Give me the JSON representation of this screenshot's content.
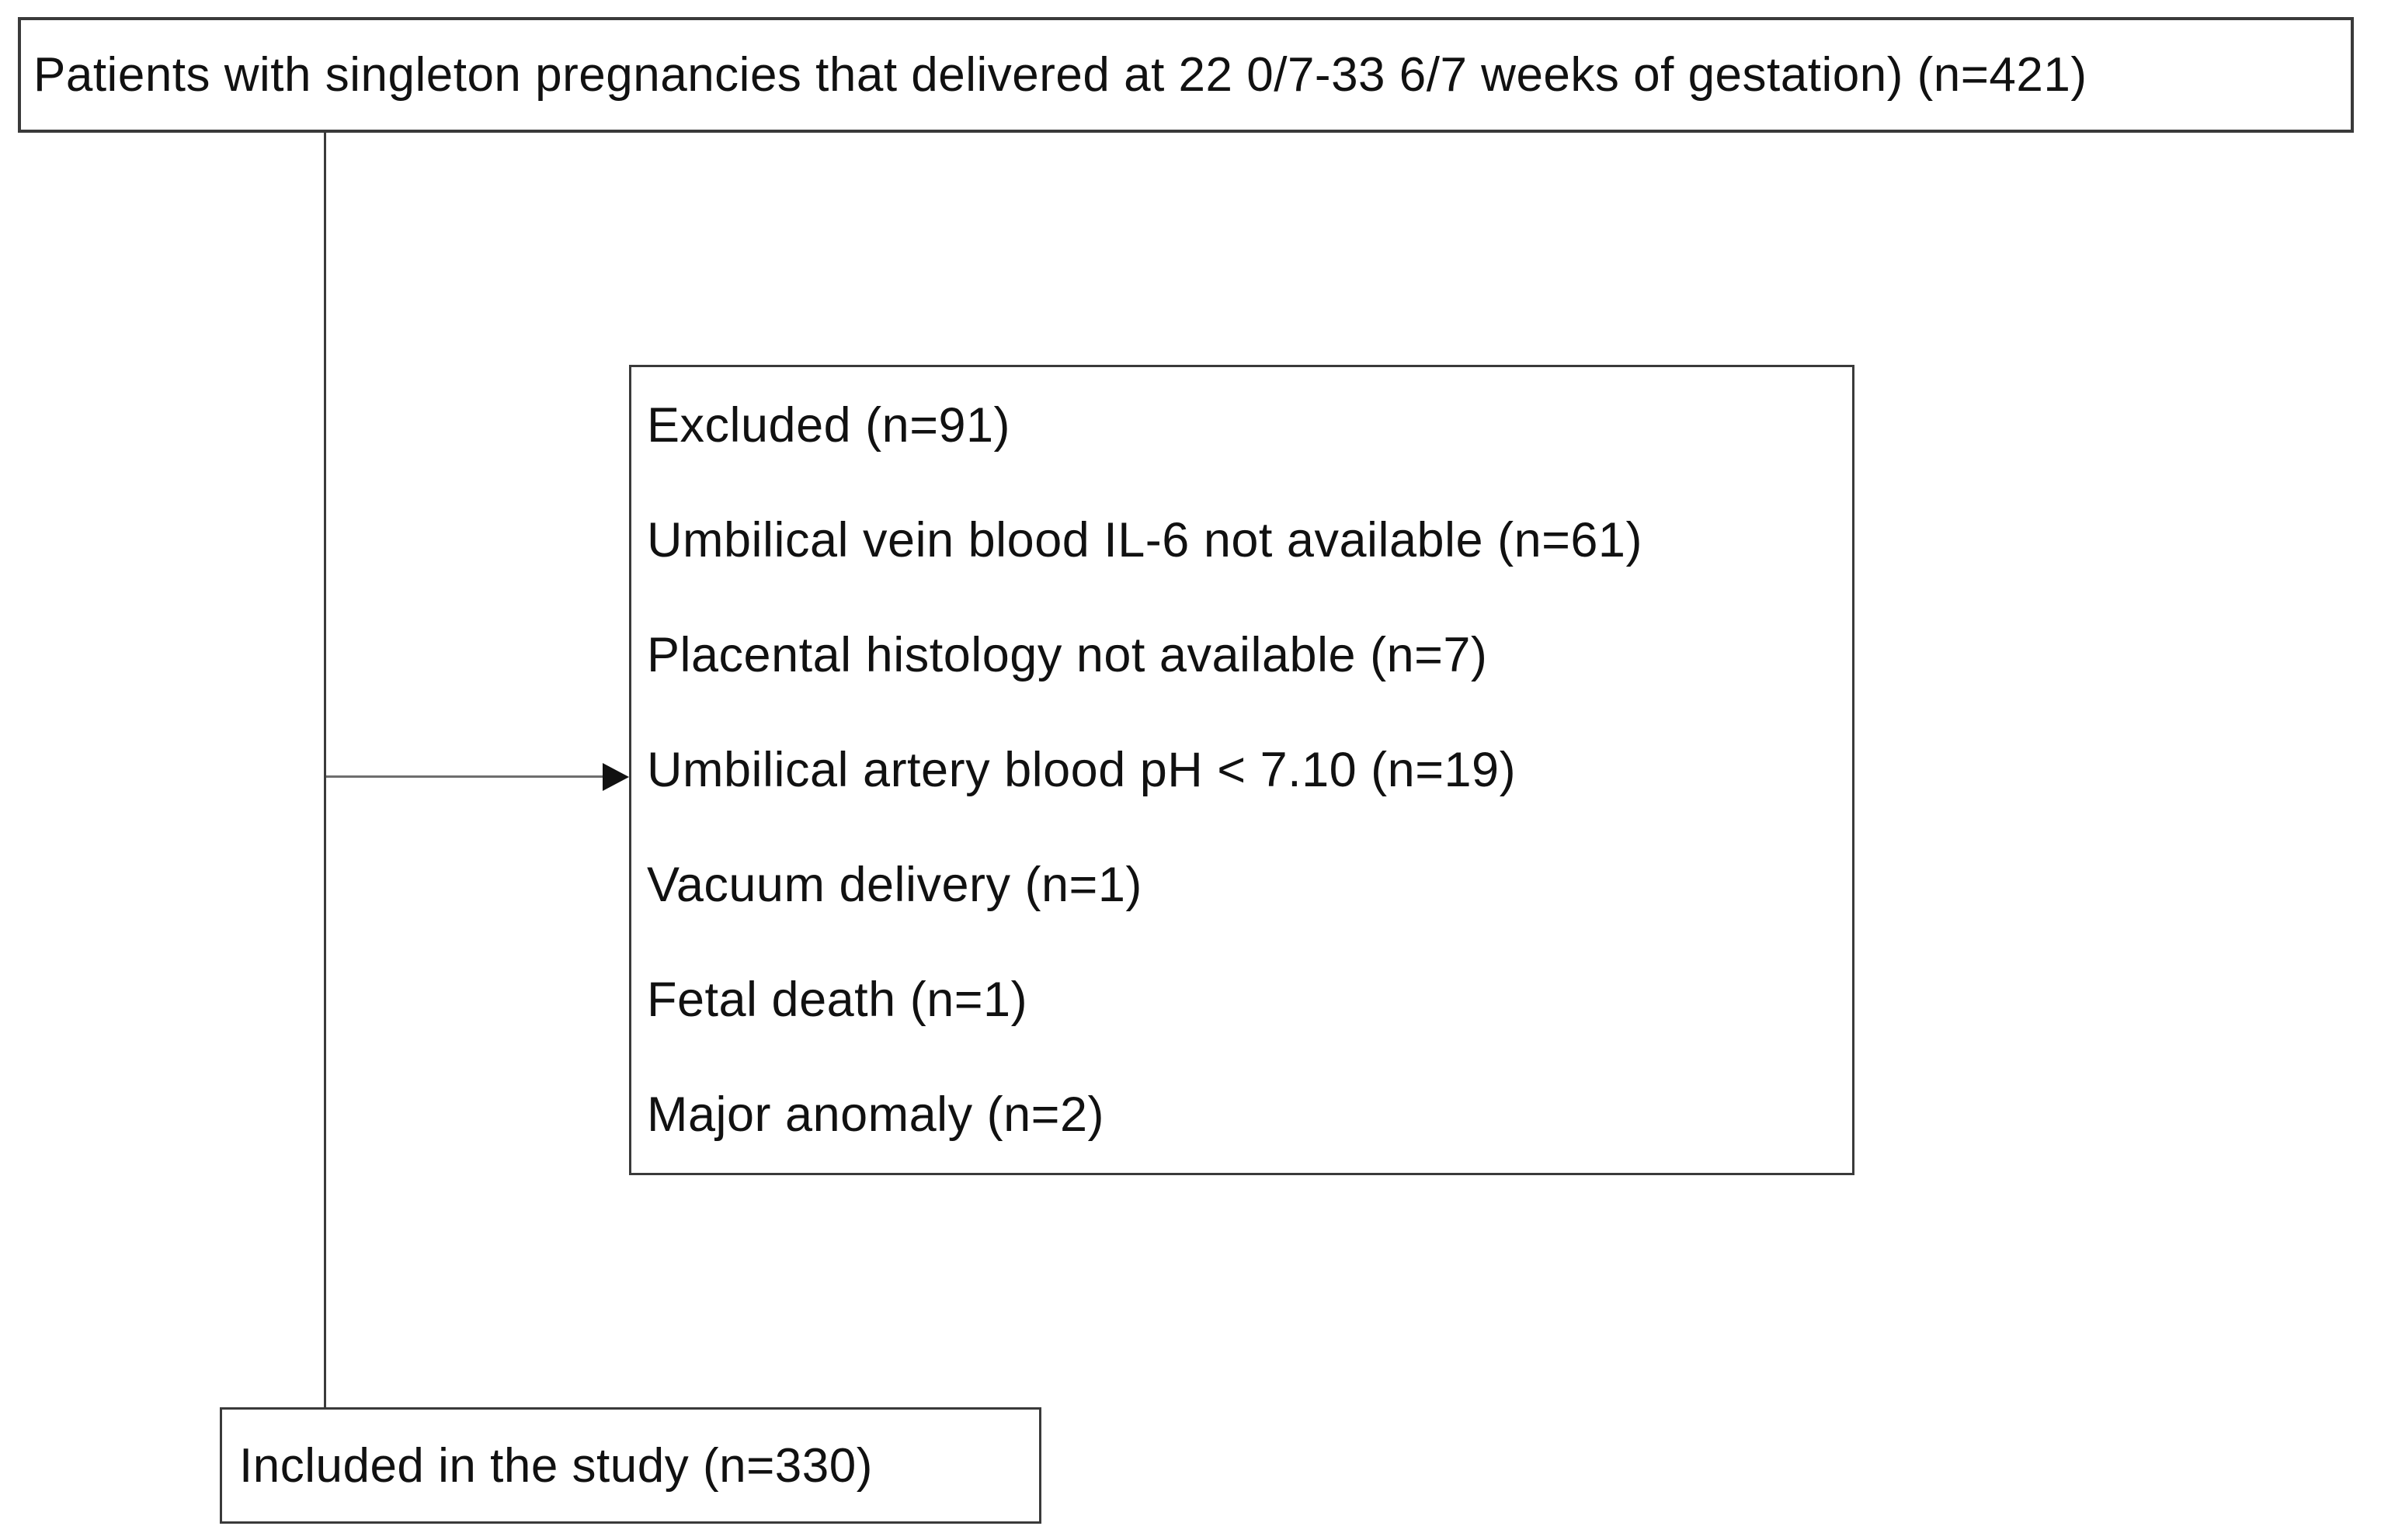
{
  "diagram": {
    "boxes": {
      "initial": {
        "text": "Patients with singleton pregnancies that delivered at 22 0/7-33 6/7 weeks of gestation) (n=421)"
      },
      "excluded": {
        "lines": [
          "Excluded (n=91)",
          "Umbilical vein blood IL-6 not available (n=61)",
          "Placental histology not available (n=7)",
          "Umbilical artery blood pH < 7.10 (n=19)",
          "Vacuum delivery (n=1)",
          "Fetal death (n=1)",
          "Major anomaly (n=2)"
        ]
      },
      "included": {
        "text": "Included in the study (n=330)"
      }
    },
    "colors": {
      "border": "#3a3a3a",
      "text": "#111111",
      "background": "#ffffff"
    }
  }
}
